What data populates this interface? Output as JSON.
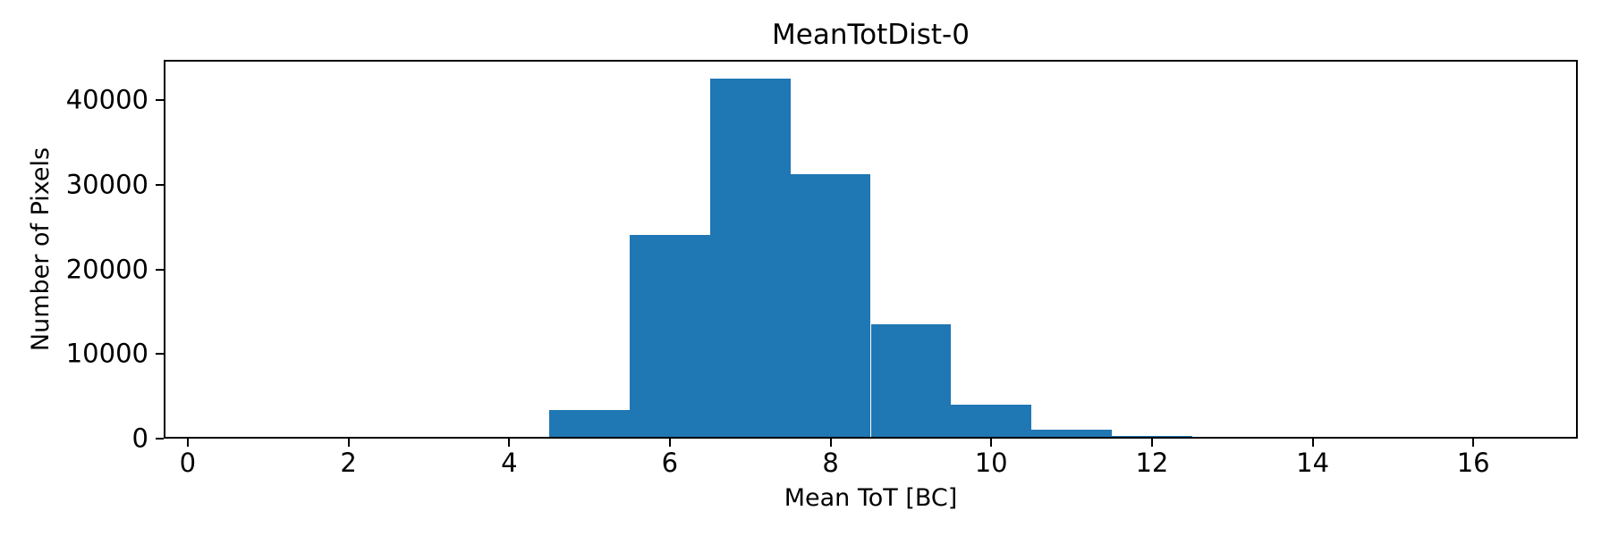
{
  "figure": {
    "background": "#ffffff",
    "text_color": "#000000"
  },
  "chart_data": {
    "type": "bar",
    "subtype": "histogram",
    "title": "MeanTotDist-0",
    "xlabel": "Mean ToT [BC]",
    "ylabel": "Number of Pixels",
    "bar_color": "#1f77b4",
    "bin_width": 1,
    "bin_centers": [
      1,
      2,
      3,
      4,
      5,
      6,
      7,
      8,
      9,
      10,
      11,
      12,
      13,
      14,
      15,
      16
    ],
    "values": [
      0,
      0,
      0,
      180,
      3400,
      24100,
      42500,
      31200,
      13500,
      4000,
      1050,
      300,
      120,
      0,
      0,
      0
    ],
    "xlim": [
      -0.3,
      17.3
    ],
    "ylim": [
      0,
      44750
    ],
    "xticks": [
      0,
      2,
      4,
      6,
      8,
      10,
      12,
      14,
      16
    ],
    "yticks": [
      0,
      10000,
      20000,
      30000,
      40000
    ],
    "grid": false,
    "legend": null
  }
}
